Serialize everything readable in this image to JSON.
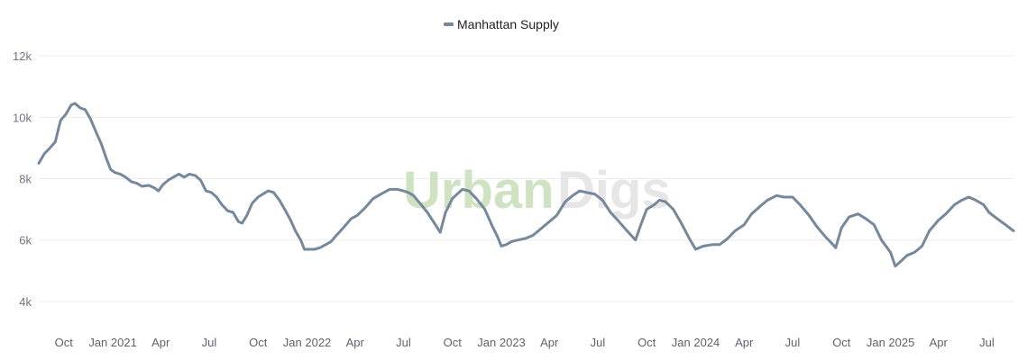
{
  "watermark": {
    "part1": "Urban",
    "part2": "Digs"
  },
  "colors": {
    "series": "#76889a",
    "grid": "#ececec",
    "watermark_green": "#cfe3c2",
    "watermark_gray": "#e6e6e6"
  },
  "chart_data": {
    "type": "line",
    "title": "",
    "xlabel": "",
    "ylabel": "",
    "legend": {
      "placement": "top-center"
    },
    "grid": true,
    "ylim": [
      3500,
      12500
    ],
    "y_ticks": [
      {
        "value": 4000,
        "label": "4k"
      },
      {
        "value": 6000,
        "label": "6k"
      },
      {
        "value": 8000,
        "label": "8k"
      },
      {
        "value": 10000,
        "label": "10k"
      },
      {
        "value": 12000,
        "label": "12k"
      }
    ],
    "xlim": [
      "2020-08-15",
      "2025-08-20"
    ],
    "x_ticks": [
      {
        "date": "2020-10-01",
        "label": "Oct"
      },
      {
        "date": "2021-01-01",
        "label": "Jan 2021"
      },
      {
        "date": "2021-04-01",
        "label": "Apr"
      },
      {
        "date": "2021-07-01",
        "label": "Jul"
      },
      {
        "date": "2021-10-01",
        "label": "Oct"
      },
      {
        "date": "2022-01-01",
        "label": "Jan 2022"
      },
      {
        "date": "2022-04-01",
        "label": "Apr"
      },
      {
        "date": "2022-07-01",
        "label": "Jul"
      },
      {
        "date": "2022-10-01",
        "label": "Oct"
      },
      {
        "date": "2023-01-01",
        "label": "Jan 2023"
      },
      {
        "date": "2023-04-01",
        "label": "Apr"
      },
      {
        "date": "2023-07-01",
        "label": "Jul"
      },
      {
        "date": "2023-10-01",
        "label": "Oct"
      },
      {
        "date": "2024-01-01",
        "label": "Jan 2024"
      },
      {
        "date": "2024-04-01",
        "label": "Apr"
      },
      {
        "date": "2024-07-01",
        "label": "Jul"
      },
      {
        "date": "2024-10-01",
        "label": "Oct"
      },
      {
        "date": "2025-01-01",
        "label": "Jan 2025"
      },
      {
        "date": "2025-04-01",
        "label": "Apr"
      },
      {
        "date": "2025-07-01",
        "label": "Jul"
      }
    ],
    "series": [
      {
        "name": "Manhattan Supply",
        "color": "#76889a",
        "points": [
          [
            "2020-08-15",
            8500
          ],
          [
            "2020-08-25",
            8800
          ],
          [
            "2020-09-05",
            9000
          ],
          [
            "2020-09-15",
            9200
          ],
          [
            "2020-09-25",
            9900
          ],
          [
            "2020-10-05",
            10100
          ],
          [
            "2020-10-15",
            10400
          ],
          [
            "2020-10-22",
            10450
          ],
          [
            "2020-11-01",
            10300
          ],
          [
            "2020-11-10",
            10250
          ],
          [
            "2020-11-20",
            9950
          ],
          [
            "2020-12-01",
            9500
          ],
          [
            "2020-12-10",
            9150
          ],
          [
            "2020-12-20",
            8650
          ],
          [
            "2020-12-28",
            8300
          ],
          [
            "2021-01-05",
            8200
          ],
          [
            "2021-01-15",
            8150
          ],
          [
            "2021-01-25",
            8050
          ],
          [
            "2021-02-05",
            7900
          ],
          [
            "2021-02-15",
            7850
          ],
          [
            "2021-02-25",
            7750
          ],
          [
            "2021-03-10",
            7780
          ],
          [
            "2021-03-20",
            7700
          ],
          [
            "2021-03-28",
            7600
          ],
          [
            "2021-04-05",
            7800
          ],
          [
            "2021-04-15",
            7950
          ],
          [
            "2021-04-25",
            8050
          ],
          [
            "2021-05-05",
            8150
          ],
          [
            "2021-05-15",
            8050
          ],
          [
            "2021-05-25",
            8150
          ],
          [
            "2021-06-05",
            8100
          ],
          [
            "2021-06-15",
            7950
          ],
          [
            "2021-06-25",
            7600
          ],
          [
            "2021-07-05",
            7550
          ],
          [
            "2021-07-15",
            7400
          ],
          [
            "2021-07-25",
            7150
          ],
          [
            "2021-08-05",
            6950
          ],
          [
            "2021-08-15",
            6900
          ],
          [
            "2021-08-25",
            6600
          ],
          [
            "2021-09-01",
            6550
          ],
          [
            "2021-09-10",
            6800
          ],
          [
            "2021-09-20",
            7200
          ],
          [
            "2021-10-01",
            7400
          ],
          [
            "2021-10-10",
            7500
          ],
          [
            "2021-10-20",
            7600
          ],
          [
            "2021-10-30",
            7550
          ],
          [
            "2021-11-10",
            7300
          ],
          [
            "2021-11-20",
            7000
          ],
          [
            "2021-12-01",
            6650
          ],
          [
            "2021-12-10",
            6300
          ],
          [
            "2021-12-20",
            6000
          ],
          [
            "2021-12-27",
            5700
          ],
          [
            "2022-01-05",
            5700
          ],
          [
            "2022-01-15",
            5700
          ],
          [
            "2022-01-25",
            5750
          ],
          [
            "2022-02-05",
            5850
          ],
          [
            "2022-02-15",
            5950
          ],
          [
            "2022-02-25",
            6150
          ],
          [
            "2022-03-10",
            6400
          ],
          [
            "2022-03-25",
            6700
          ],
          [
            "2022-04-05",
            6800
          ],
          [
            "2022-04-20",
            7050
          ],
          [
            "2022-05-05",
            7350
          ],
          [
            "2022-05-20",
            7500
          ],
          [
            "2022-06-05",
            7650
          ],
          [
            "2022-06-20",
            7650
          ],
          [
            "2022-07-01",
            7600
          ],
          [
            "2022-07-10",
            7550
          ],
          [
            "2022-07-20",
            7450
          ],
          [
            "2022-08-01",
            7200
          ],
          [
            "2022-08-15",
            6900
          ],
          [
            "2022-09-01",
            6450
          ],
          [
            "2022-09-08",
            6250
          ],
          [
            "2022-09-18",
            6900
          ],
          [
            "2022-10-01",
            7350
          ],
          [
            "2022-10-10",
            7500
          ],
          [
            "2022-10-20",
            7650
          ],
          [
            "2022-11-01",
            7600
          ],
          [
            "2022-11-15",
            7350
          ],
          [
            "2022-12-01",
            7000
          ],
          [
            "2022-12-15",
            6450
          ],
          [
            "2022-12-25",
            6100
          ],
          [
            "2023-01-01",
            5800
          ],
          [
            "2023-01-10",
            5850
          ],
          [
            "2023-01-20",
            5950
          ],
          [
            "2023-02-01",
            6000
          ],
          [
            "2023-02-15",
            6050
          ],
          [
            "2023-03-01",
            6150
          ],
          [
            "2023-03-15",
            6350
          ],
          [
            "2023-04-01",
            6600
          ],
          [
            "2023-04-15",
            6800
          ],
          [
            "2023-05-01",
            7250
          ],
          [
            "2023-05-15",
            7450
          ],
          [
            "2023-05-28",
            7600
          ],
          [
            "2023-06-10",
            7550
          ],
          [
            "2023-06-25",
            7500
          ],
          [
            "2023-07-10",
            7300
          ],
          [
            "2023-07-25",
            6900
          ],
          [
            "2023-08-10",
            6600
          ],
          [
            "2023-08-25",
            6300
          ],
          [
            "2023-09-10",
            6000
          ],
          [
            "2023-09-20",
            6500
          ],
          [
            "2023-10-01",
            7000
          ],
          [
            "2023-10-15",
            7150
          ],
          [
            "2023-10-25",
            7300
          ],
          [
            "2023-11-05",
            7250
          ],
          [
            "2023-11-20",
            7000
          ],
          [
            "2023-12-05",
            6550
          ],
          [
            "2023-12-20",
            6050
          ],
          [
            "2024-01-01",
            5700
          ],
          [
            "2024-01-15",
            5800
          ],
          [
            "2024-02-01",
            5850
          ],
          [
            "2024-02-15",
            5850
          ],
          [
            "2024-03-01",
            6050
          ],
          [
            "2024-03-15",
            6300
          ],
          [
            "2024-04-01",
            6500
          ],
          [
            "2024-04-15",
            6850
          ],
          [
            "2024-05-01",
            7100
          ],
          [
            "2024-05-15",
            7300
          ],
          [
            "2024-06-01",
            7450
          ],
          [
            "2024-06-15",
            7400
          ],
          [
            "2024-07-01",
            7400
          ],
          [
            "2024-07-15",
            7150
          ],
          [
            "2024-08-01",
            6800
          ],
          [
            "2024-08-15",
            6450
          ],
          [
            "2024-09-01",
            6100
          ],
          [
            "2024-09-15",
            5850
          ],
          [
            "2024-09-20",
            5750
          ],
          [
            "2024-10-01",
            6400
          ],
          [
            "2024-10-15",
            6750
          ],
          [
            "2024-11-01",
            6850
          ],
          [
            "2024-11-15",
            6700
          ],
          [
            "2024-12-01",
            6500
          ],
          [
            "2024-12-15",
            6000
          ],
          [
            "2025-01-01",
            5600
          ],
          [
            "2025-01-10",
            5150
          ],
          [
            "2025-01-20",
            5300
          ],
          [
            "2025-02-01",
            5500
          ],
          [
            "2025-02-15",
            5600
          ],
          [
            "2025-03-01",
            5800
          ],
          [
            "2025-03-15",
            6300
          ],
          [
            "2025-04-01",
            6650
          ],
          [
            "2025-04-15",
            6850
          ],
          [
            "2025-05-01",
            7150
          ],
          [
            "2025-05-15",
            7300
          ],
          [
            "2025-05-28",
            7400
          ],
          [
            "2025-06-10",
            7300
          ],
          [
            "2025-06-25",
            7150
          ],
          [
            "2025-07-05",
            6900
          ],
          [
            "2025-07-20",
            6700
          ],
          [
            "2025-08-05",
            6500
          ],
          [
            "2025-08-20",
            6300
          ]
        ]
      }
    ]
  }
}
